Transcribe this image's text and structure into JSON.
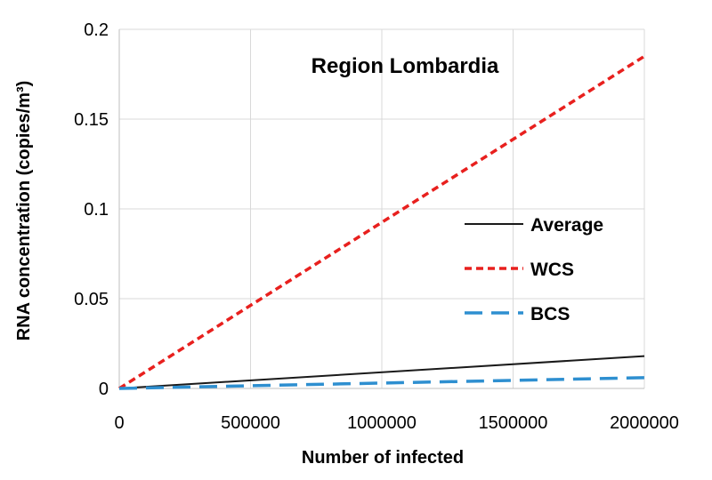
{
  "chart_data": {
    "type": "line",
    "title": "Region Lombardia",
    "xlabel": "Number of infected",
    "ylabel": "RNA concentration (copies/m³)",
    "x": [
      0,
      2000000
    ],
    "xlim": [
      0,
      2000000
    ],
    "ylim": [
      0,
      0.2
    ],
    "xticks": [
      "0",
      "500000",
      "1000000",
      "1500000",
      "2000000"
    ],
    "yticks": [
      "0",
      "0.05",
      "0.1",
      "0.15",
      "0.2"
    ],
    "grid": true,
    "legend_position": "right",
    "series": [
      {
        "name": "Average",
        "values": [
          0,
          0.018
        ],
        "color": "#1a1a1a",
        "dash": "solid"
      },
      {
        "name": "WCS",
        "values": [
          0,
          0.185
        ],
        "color": "#e8201e",
        "dash": "short-dash"
      },
      {
        "name": "BCS",
        "values": [
          0,
          0.006
        ],
        "color": "#2e8fd0",
        "dash": "long-dash"
      }
    ]
  }
}
